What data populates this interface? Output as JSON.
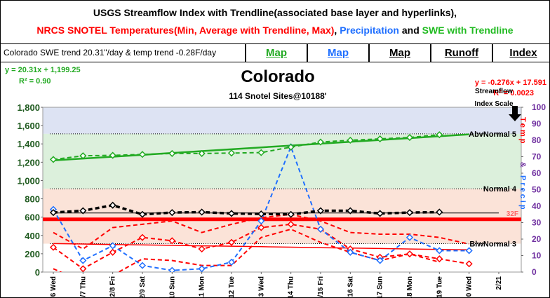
{
  "header": {
    "line1": "USGS Streamflow Index with Trendline(associated base layer and hyperlinks),",
    "line2": [
      {
        "text": "NRCS SNOTEL Temperatures(Min, Average with Trendline, Max)",
        "color": "#ff0000"
      },
      {
        "text": ", ",
        "color": "#000000"
      },
      {
        "text": "Precipitation",
        "color": "#1f6fff"
      },
      {
        "text": " and ",
        "color": "#000000"
      },
      {
        "text": "SWE with Trendline",
        "color": "#22bb22"
      }
    ]
  },
  "nav": {
    "info": "Colorado SWE trend 20.31\"/day & temp trend -0.28F/day",
    "links": [
      {
        "text": "Map",
        "color": "#22aa22"
      },
      {
        "text": "Map",
        "color": "#1f6fff"
      },
      {
        "text": "Map",
        "color": "#000000"
      },
      {
        "text": "Runoff",
        "color": "#000000"
      },
      {
        "text": "Index",
        "color": "#000000"
      }
    ]
  },
  "chart_data": {
    "type": "line",
    "title": "Colorado",
    "subtitle": "114 Snotel Sites@10188'",
    "swe_equation": "y = 20.31x + 1,199.25",
    "swe_r2": "R² = 0.90",
    "temp_equation": "y = -0.276x + 17.591",
    "temp_r2": "R² = 0.0023",
    "streamflow_label": [
      "Streamflow",
      "Index Scale"
    ],
    "y2_label_parts": [
      {
        "text": "Temp",
        "color": "#ff0000"
      },
      {
        "text": "&",
        "color": "#7030a0"
      },
      {
        "text": "Precip",
        "color": "#1f6fff"
      }
    ],
    "categories": [
      "2/6 Wed",
      "2/7 Thu",
      "2/8 Fri",
      "2/9 Sat",
      "2/10 Sun",
      "2/11 Mon",
      "2/12 Tue",
      "2/13 Wed",
      "2/14 Thu",
      "2/15 Fri",
      "2/16 Sat",
      "2/17 Sun",
      "2/18 Mon",
      "2/19 Tue",
      "2/20 Wed",
      "2/21"
    ],
    "ylim": [
      0,
      1800
    ],
    "yticks": [
      0,
      200,
      400,
      600,
      800,
      {
        "value": 1000,
        "label": "1,000"
      },
      {
        "value": 1200,
        "label": "1,200"
      },
      {
        "value": 1400,
        "label": "1,400"
      },
      {
        "value": 1600,
        "label": "1,600"
      },
      {
        "value": 1800,
        "label": "1,800"
      }
    ],
    "y2lim": [
      0,
      100
    ],
    "y2ticks": [
      0,
      10,
      20,
      30,
      40,
      50,
      60,
      70,
      80,
      90,
      100
    ],
    "bands": [
      {
        "label": "AbvNormal 5",
        "value": 1510
      },
      {
        "label": "Normal 4",
        "value": 910
      },
      {
        "label": "BlwNormal 3",
        "value": 310
      }
    ],
    "freeze_line": {
      "label": "32F",
      "value": 32
    },
    "series": [
      {
        "color": "#ff0000",
        "axis": "y2",
        "dash": false,
        "width": 1.5,
        "values": [
          17.3,
          17.0,
          16.7,
          16.5,
          16.2,
          15.9,
          15.7,
          15.4,
          15.1,
          14.8,
          14.6,
          14.3,
          14.0,
          13.7,
          13.5,
          null
        ]
      },
      {
        "color": "#22aa22",
        "axis": "y",
        "dash": false,
        "width": 2.5,
        "values": [
          1219.6,
          1239.9,
          1260.2,
          1280.5,
          1300.8,
          1321.1,
          1341.4,
          1361.7,
          1382.0,
          1402.3,
          1422.6,
          1442.9,
          1463.3,
          1483.6,
          1503.9,
          null
        ]
      },
      {
        "color": "#000000",
        "axis": "y",
        "dash": false,
        "width": 1,
        "values": [
          645,
          645,
          645,
          645,
          645,
          645,
          645,
          645,
          645,
          645,
          645,
          645,
          645,
          645,
          645,
          645
        ]
      },
      {
        "color": "#ff0000",
        "axis": "y2",
        "dash": true,
        "width": 2,
        "values": [
          24,
          14,
          27,
          29,
          31,
          24,
          29,
          33,
          35,
          31,
          24,
          23,
          23,
          21,
          17,
          null
        ]
      },
      {
        "color": "#ff0000",
        "axis": "y2",
        "dash": true,
        "width": 2,
        "values": [
          2,
          -6,
          -2,
          8,
          7,
          4,
          4,
          21,
          26,
          18,
          12,
          7,
          11,
          6,
          null,
          null
        ]
      },
      {
        "color": "#ff0000",
        "axis": "y2",
        "dash": true,
        "width": 2,
        "marker": true,
        "values": [
          15,
          2,
          12,
          21,
          19,
          14,
          18,
          27,
          29,
          26,
          14,
          9,
          11,
          8,
          5,
          null
        ]
      },
      {
        "color": "#1f6fff",
        "axis": "y2",
        "dash": true,
        "width": 2,
        "marker": true,
        "values": [
          38,
          7,
          16,
          4,
          1,
          2,
          6,
          31,
          76,
          26,
          12,
          7,
          21,
          13,
          13,
          null
        ]
      },
      {
        "color": "#22aa22",
        "axis": "y",
        "dash": true,
        "width": 2,
        "marker": true,
        "values": [
          1230,
          1270,
          1275,
          1285,
          1295,
          1295,
          1300,
          1305,
          1365,
          1420,
          1440,
          1455,
          1470,
          1500,
          null,
          null
        ]
      },
      {
        "color": "#000000",
        "axis": "y",
        "dash": true,
        "width": 3.5,
        "marker": true,
        "values": [
          650,
          670,
          730,
          630,
          650,
          655,
          640,
          635,
          630,
          670,
          670,
          640,
          650,
          655,
          null,
          null
        ]
      }
    ]
  }
}
